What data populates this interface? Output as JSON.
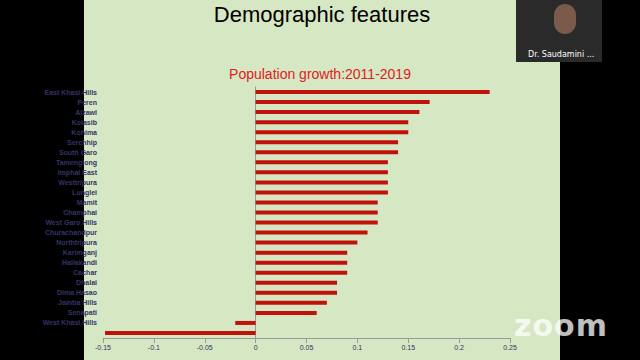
{
  "page": {
    "heading": "Demographic features",
    "speaker": "Dr. Saudamini ...",
    "watermark": "zoom"
  },
  "chart_data": {
    "type": "bar",
    "orientation": "horizontal",
    "title": "Population growth:2011-2019",
    "categories": [
      "East Khasi Hills",
      "Peren",
      "Aizawl",
      "Kolasib",
      "Kohima",
      "Serchhip",
      "South Garo",
      "Tamenglong",
      "Imphal East",
      "Westtripura",
      "Lunglei",
      "Mamit",
      "Champhai",
      "West Garo Hills",
      "Churachandpur",
      "Northtripura",
      "Karimganj",
      "Hailakandi",
      "Cachar",
      "Dhalai",
      "Dima Hasao",
      "Jaintia Hills",
      "Senapati",
      "West Khasi Hills",
      null
    ],
    "values": [
      0.23,
      0.171,
      0.161,
      0.15,
      0.15,
      0.14,
      0.14,
      0.13,
      0.13,
      0.13,
      0.13,
      0.12,
      0.12,
      0.12,
      0.11,
      0.1,
      0.09,
      0.09,
      0.09,
      0.08,
      0.08,
      0.07,
      0.06,
      -0.02,
      -0.148
    ],
    "color": "#c0120a",
    "xlim": [
      -0.15,
      0.25
    ],
    "xticks": [
      -0.15,
      -0.1,
      -0.05,
      0,
      0.05,
      0.1,
      0.15,
      0.2,
      0.25
    ],
    "grid": false
  }
}
